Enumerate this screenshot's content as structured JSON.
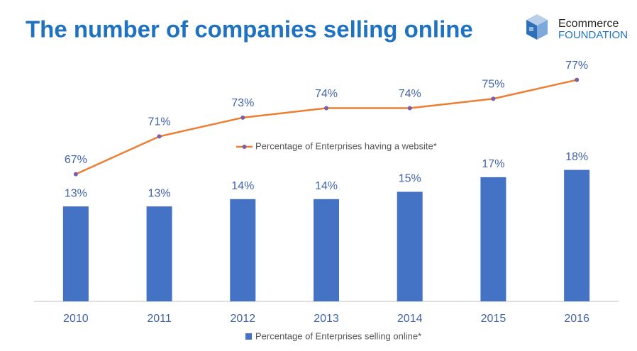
{
  "brand": {
    "line1": "Ecommerce",
    "line2": "FOUNDATION"
  },
  "chart_data": {
    "type": "bar-line",
    "title": "The number of companies selling online",
    "categories": [
      "2010",
      "2011",
      "2012",
      "2013",
      "2014",
      "2015",
      "2016"
    ],
    "series": [
      {
        "name": "Percentage of Enterprises selling online*",
        "type": "bar",
        "color": "#4472c4",
        "values": [
          13,
          13,
          14,
          14,
          15,
          17,
          18
        ],
        "value_labels": [
          "13%",
          "13%",
          "14%",
          "14%",
          "15%",
          "17%",
          "18%"
        ]
      },
      {
        "name": "Percentage of Enterprises having a website*",
        "type": "line",
        "axis": "y2",
        "color": "#ed7d31",
        "values": [
          67,
          71,
          73,
          74,
          74,
          75,
          77
        ],
        "value_labels": [
          "67%",
          "71%",
          "73%",
          "74%",
          "74%",
          "75%",
          "77%"
        ]
      }
    ],
    "ylim": [
      0,
      40
    ],
    "y2lim": [
      53.5,
      84.5
    ]
  }
}
